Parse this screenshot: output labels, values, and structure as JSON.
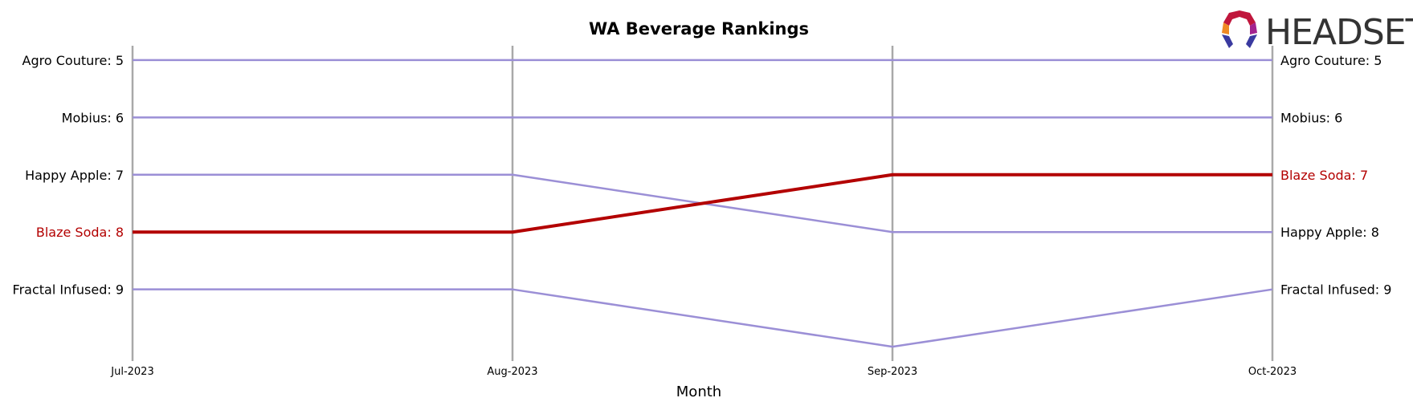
{
  "chart_data": {
    "type": "line",
    "title": "WA Beverage Rankings",
    "xlabel": "Month",
    "ylabel": "",
    "x": [
      "Jul-2023",
      "Aug-2023",
      "Sep-2023",
      "Oct-2023"
    ],
    "y_axis_inverted": true,
    "ylim": [
      4.75,
      10.25
    ],
    "grid": "vertical lines at each month",
    "highlight_color": "#b30000",
    "default_color": "#9b8fd6",
    "axis_line_color": "#a9a9a9",
    "series": [
      {
        "name": "Agro Couture",
        "values": [
          5,
          5,
          5,
          5
        ],
        "highlight": false
      },
      {
        "name": "Mobius",
        "values": [
          6,
          6,
          6,
          6
        ],
        "highlight": false
      },
      {
        "name": "Happy Apple",
        "values": [
          7,
          7,
          8,
          8
        ],
        "highlight": false
      },
      {
        "name": "Blaze Soda",
        "values": [
          8,
          8,
          7,
          7
        ],
        "highlight": true
      },
      {
        "name": "Fractal Infused",
        "values": [
          9,
          9,
          10,
          9
        ],
        "highlight": false
      }
    ],
    "left_labels": [
      {
        "text": "Agro Couture: 5",
        "rank": 5,
        "highlight": false
      },
      {
        "text": "Mobius: 6",
        "rank": 6,
        "highlight": false
      },
      {
        "text": "Happy Apple: 7",
        "rank": 7,
        "highlight": false
      },
      {
        "text": "Blaze Soda: 8",
        "rank": 8,
        "highlight": true
      },
      {
        "text": "Fractal Infused: 9",
        "rank": 9,
        "highlight": false
      }
    ],
    "right_labels": [
      {
        "text": "Agro Couture: 5",
        "rank": 5,
        "highlight": false
      },
      {
        "text": "Mobius: 6",
        "rank": 6,
        "highlight": false
      },
      {
        "text": "Blaze Soda: 7",
        "rank": 7,
        "highlight": true
      },
      {
        "text": "Happy Apple: 8",
        "rank": 8,
        "highlight": false
      },
      {
        "text": "Fractal Infused: 9",
        "rank": 9,
        "highlight": false
      }
    ]
  },
  "logo": {
    "text": "HEADSET",
    "icon": "headset-logo-icon"
  }
}
